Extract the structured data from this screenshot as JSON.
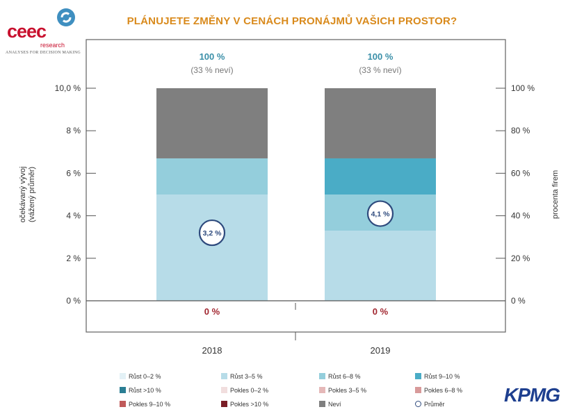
{
  "logo": {
    "name": "ceec",
    "sub": "research",
    "tagline": "ANALYSES FOR DECISION MAKING"
  },
  "title": "PLÁNUJETE ZMĚNY V CENÁCH PRONÁJMŮ VAŠICH PROSTOR?",
  "chart_data": {
    "type": "bar",
    "stacked": true,
    "categories": [
      "2018",
      "2019"
    ],
    "ylabel_left": "očekávaný vývoj (vážený průměr)",
    "ylabel_right": "procenta firem",
    "left_ticks": [
      "0 %",
      "2 %",
      "4 %",
      "6 %",
      "8 %",
      "10,0 %"
    ],
    "right_ticks": [
      "0 %",
      "20 %",
      "40 %",
      "60 %",
      "80 %",
      "100 %"
    ],
    "ylim_percent": [
      0,
      100
    ],
    "ylim_left": [
      0,
      10
    ],
    "series": [
      {
        "name": "Růst 0–2 %",
        "color": "#e3f1f6",
        "values": [
          0,
          0
        ]
      },
      {
        "name": "Růst 3–5 %",
        "color": "#b7dce8",
        "values": [
          50,
          33
        ]
      },
      {
        "name": "Růst 6–8 %",
        "color": "#94cedc",
        "values": [
          17,
          17
        ]
      },
      {
        "name": "Růst 9–10 %",
        "color": "#4aacc6",
        "values": [
          0,
          17
        ]
      },
      {
        "name": "Růst >10 %",
        "color": "#2b7e94",
        "values": [
          0,
          0
        ]
      },
      {
        "name": "Pokles 0–2 %",
        "color": "#f1dede",
        "values": [
          0,
          0
        ]
      },
      {
        "name": "Pokles 3–5 %",
        "color": "#e5b8b8",
        "values": [
          0,
          0
        ]
      },
      {
        "name": "Pokles 6–8 %",
        "color": "#d89a9a",
        "values": [
          0,
          0
        ]
      },
      {
        "name": "Pokles 9–10 %",
        "color": "#c05a5a",
        "values": [
          0,
          0
        ]
      },
      {
        "name": "Pokles >10 %",
        "color": "#7a1e26",
        "values": [
          0,
          0
        ]
      },
      {
        "name": "Neví",
        "color": "#7f7f7f",
        "values": [
          33,
          33
        ]
      }
    ],
    "average": {
      "name": "Průměr",
      "values": [
        3.2,
        4.1
      ],
      "labels": [
        "3,2 %",
        "4,1 %"
      ]
    },
    "totals_positive": [
      "100 %",
      "100 %"
    ],
    "totals_unknown": [
      "(33 % neví)",
      "(33 % neví)"
    ],
    "totals_negative": [
      "0 %",
      "0 %"
    ],
    "legend_position": "bottom",
    "colors": {
      "positive_total": "#3a8fa8",
      "negative_total": "#a1262f",
      "average_ring": "#2e4a7d"
    }
  },
  "kpmg": "KPMG"
}
